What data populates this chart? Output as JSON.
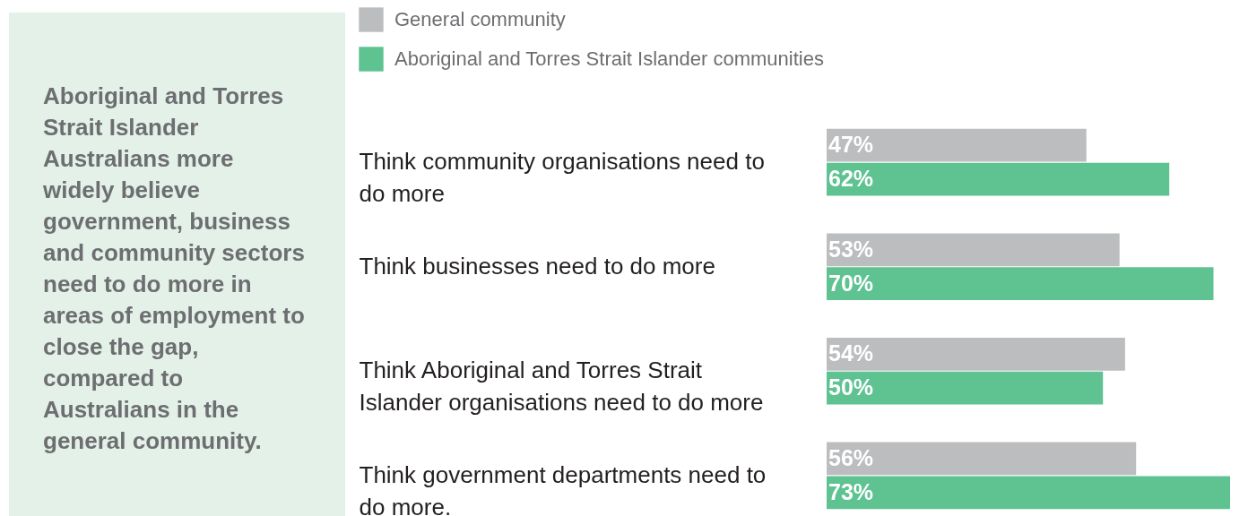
{
  "chart_data": {
    "type": "bar",
    "orientation": "horizontal",
    "categories": [
      "Think community organisations need to do more",
      "Think businesses need to do more",
      "Think Aboriginal and Torres Strait Islander organisations need to do more",
      "Think government departments need to do more."
    ],
    "series": [
      {
        "name": "General community",
        "color": "#bcbdbf",
        "values": [
          47,
          53,
          54,
          56
        ],
        "value_labels": [
          "47%",
          "53%",
          "54%",
          "56%"
        ]
      },
      {
        "name": "Aboriginal and Torres Strait Islander communities",
        "color": "#5ec291",
        "values": [
          62,
          70,
          50,
          73
        ],
        "value_labels": [
          "62%",
          "70%",
          "50%",
          "73%"
        ]
      }
    ],
    "legend": "top left",
    "annotations": [
      "Aboriginal and Torres Strait Islander Australians more widely believe government, business and community sectors need to do more in areas of employment to close the gap, compared to Australians in the general community."
    ]
  }
}
